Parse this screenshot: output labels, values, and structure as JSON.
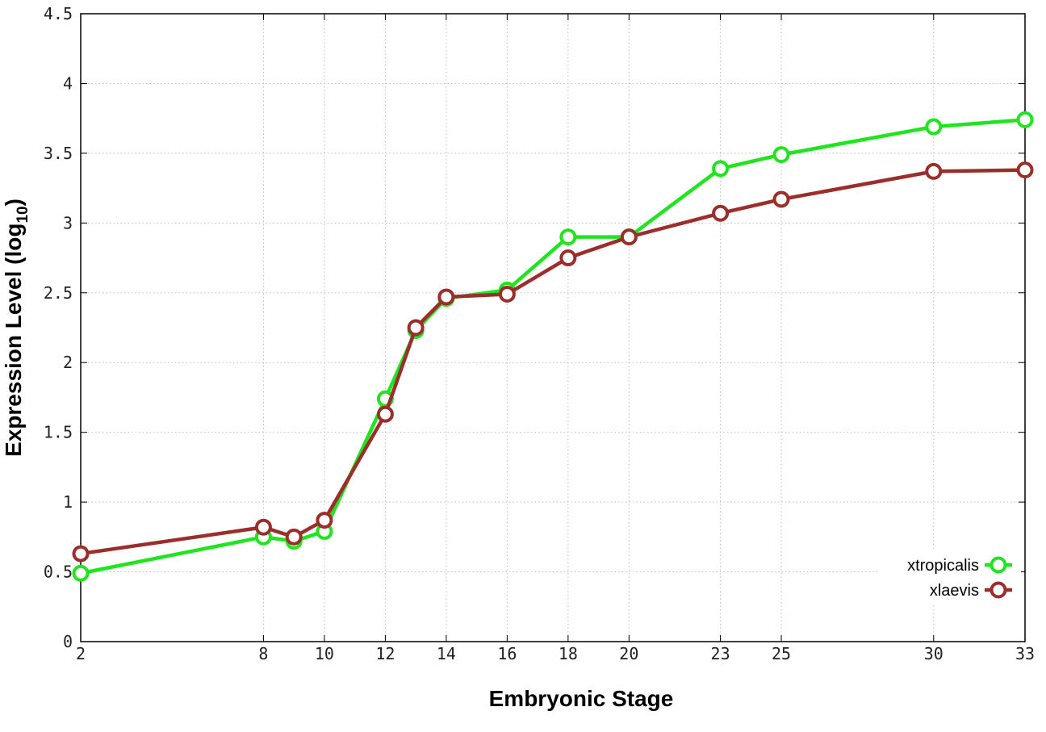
{
  "chart_data": {
    "type": "line",
    "xlabel": "Embryonic Stage",
    "ylabel": "Expression Level (log",
    "ylabel_sub": "10",
    "ylabel_end": ")",
    "x": [
      2,
      8,
      9,
      10,
      12,
      13,
      14,
      16,
      18,
      20,
      23,
      25,
      30,
      33
    ],
    "xticks": [
      2,
      8,
      10,
      12,
      14,
      16,
      18,
      20,
      23,
      25,
      30,
      33
    ],
    "yticks": [
      "0",
      "0.5",
      "1",
      "1.5",
      "2",
      "2.5",
      "3",
      "3.5",
      "4",
      "4.5"
    ],
    "ylim": [
      0,
      4.5
    ],
    "grid": true,
    "legend_position": "bottom-right",
    "series": [
      {
        "name": "xtropicalis",
        "color": "#1fe51f",
        "values": [
          0.49,
          0.75,
          0.72,
          0.79,
          1.74,
          2.23,
          2.46,
          2.52,
          2.9,
          2.9,
          3.39,
          3.49,
          3.69,
          3.74
        ]
      },
      {
        "name": "xlaevis",
        "color": "#9b2e2a",
        "values": [
          0.63,
          0.82,
          0.75,
          0.87,
          1.63,
          2.25,
          2.47,
          2.49,
          2.75,
          2.9,
          3.07,
          3.17,
          3.37,
          3.38
        ]
      }
    ]
  }
}
